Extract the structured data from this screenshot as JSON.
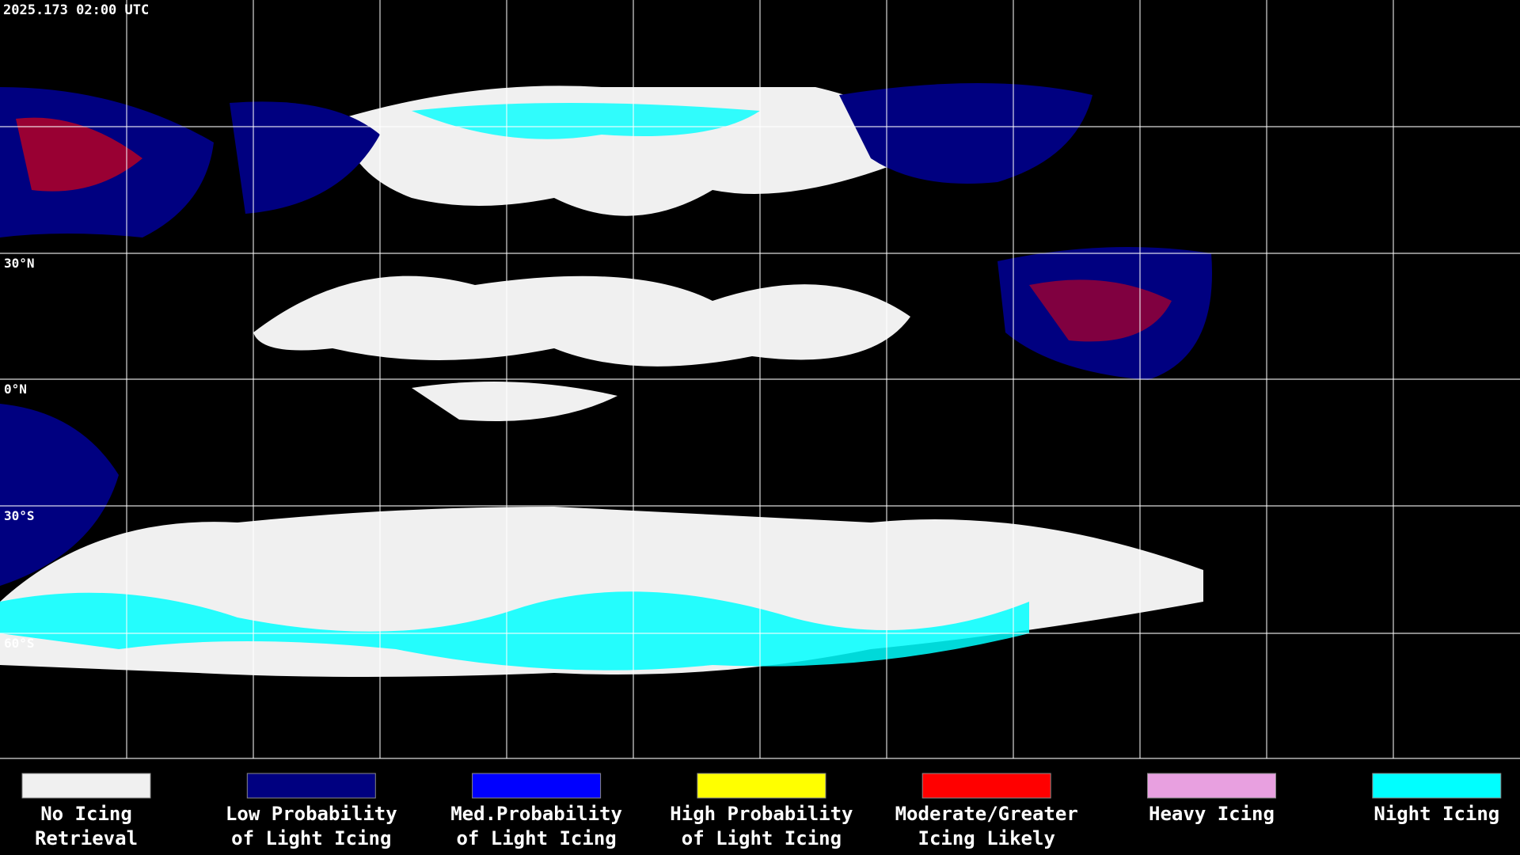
{
  "map": {
    "timestamp": "2025.173 02:00 UTC",
    "latitude_labels": [
      "30°N",
      "0°N",
      "30°S",
      "60°S"
    ]
  },
  "legend": {
    "items": [
      {
        "lines": [
          "No Icing",
          "Retrieval"
        ],
        "color": "#f0f0f0"
      },
      {
        "lines": [
          "Low Probability",
          "of Light Icing"
        ],
        "color": "#000080"
      },
      {
        "lines": [
          "Med.Probability",
          "of Light Icing"
        ],
        "color": "#0000ff"
      },
      {
        "lines": [
          "High Probability",
          "of Light Icing"
        ],
        "color": "#ffff00"
      },
      {
        "lines": [
          "Moderate/Greater",
          "Icing Likely"
        ],
        "color": "#ff0000"
      },
      {
        "lines": [
          "Heavy Icing"
        ],
        "color": "#e8a0e0"
      },
      {
        "lines": [
          "Night Icing"
        ],
        "color": "#00ffff"
      }
    ]
  }
}
